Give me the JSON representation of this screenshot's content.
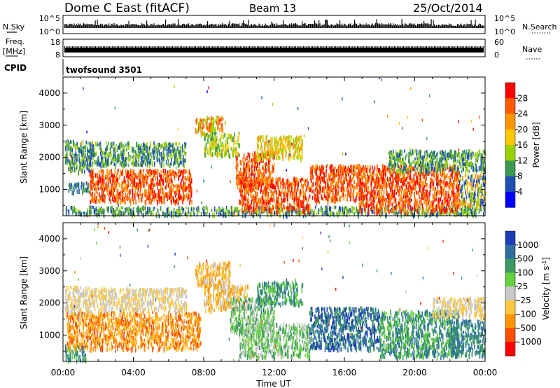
{
  "header": {
    "station": "Dome C East (fitACF)",
    "beam": "Beam 13",
    "date": "25/Oct/2014"
  },
  "strip_panels": {
    "nsky_label": "N.Sky",
    "nsky_tick_top": "10^5",
    "nsky_tick_bottom": "10^0",
    "nsearch_label": "N.Search",
    "nsearch_tick_top": "10^5",
    "nsearch_tick_bottom": "10^0",
    "freq_label_line1": "Freq.",
    "freq_label_line2": "[MHz]",
    "freq_tick_top": "18",
    "freq_tick_bottom": "8",
    "nave_label": "Nave",
    "nave_tick_top": "60",
    "nave_tick_bottom": "0",
    "cpid_label": "CPID",
    "cpid_value": "twofsound 3501"
  },
  "chart_data": [
    {
      "type": "heatmap",
      "name": "power",
      "ylabel": "Slant Range [km]",
      "xlabel": "",
      "x_ticks": [
        "00:00",
        "04:00",
        "08:00",
        "12:00",
        "16:00",
        "20:00",
        "00:00"
      ],
      "x_range_hours": [
        0,
        24
      ],
      "y_ticks": [
        1000,
        2000,
        3000,
        4000
      ],
      "y_range_km": [
        180,
        4500
      ],
      "colorbar": {
        "label": "Power [dB]",
        "ticks": [
          "28",
          "24",
          "20",
          "16",
          "12",
          "8",
          "4"
        ],
        "colors": [
          "#ff0000",
          "#ff5a00",
          "#ff9600",
          "#ffc800",
          "#9ad200",
          "#3c9a50",
          "#1e50b4",
          "#0000ff"
        ]
      },
      "echo_regions": [
        {
          "t0": 0.1,
          "t1": 24,
          "r0": 250,
          "r1": 500,
          "color_idx": [
            5,
            4,
            6
          ]
        },
        {
          "t0": 0.1,
          "t1": 1.6,
          "r0": 1600,
          "r1": 2550,
          "color_idx": [
            6,
            5,
            4
          ]
        },
        {
          "t0": 1.5,
          "t1": 7.0,
          "r0": 1800,
          "r1": 2500,
          "color_idx": [
            6,
            5,
            4
          ]
        },
        {
          "t0": 0.3,
          "t1": 1.5,
          "r0": 950,
          "r1": 1250,
          "color_idx": [
            6,
            5
          ]
        },
        {
          "t0": 1.5,
          "t1": 7.3,
          "r0": 650,
          "r1": 1650,
          "color_idx": [
            1,
            0,
            2
          ]
        },
        {
          "t0": 7.5,
          "t1": 9.2,
          "r0": 2800,
          "r1": 3300,
          "color_idx": [
            1,
            2,
            4
          ]
        },
        {
          "t0": 8.0,
          "t1": 10.0,
          "r0": 2100,
          "r1": 2800,
          "color_idx": [
            4,
            3,
            5
          ]
        },
        {
          "t0": 9.8,
          "t1": 12.0,
          "r0": 1100,
          "r1": 2200,
          "color_idx": [
            0,
            1,
            2
          ]
        },
        {
          "t0": 11.0,
          "t1": 13.6,
          "r0": 2000,
          "r1": 2700,
          "color_idx": [
            2,
            3,
            4
          ]
        },
        {
          "t0": 10.0,
          "t1": 14.0,
          "r0": 350,
          "r1": 1400,
          "color_idx": [
            0,
            1,
            2
          ]
        },
        {
          "t0": 14.0,
          "t1": 17.0,
          "r0": 700,
          "r1": 1800,
          "color_idx": [
            1,
            0,
            2
          ]
        },
        {
          "t0": 16.8,
          "t1": 22.5,
          "r0": 350,
          "r1": 1800,
          "color_idx": [
            0,
            1,
            2
          ]
        },
        {
          "t0": 18.5,
          "t1": 24.0,
          "r0": 1600,
          "r1": 2250,
          "color_idx": [
            5,
            4,
            6
          ]
        },
        {
          "t0": 22.5,
          "t1": 24.0,
          "r0": 500,
          "r1": 1500,
          "color_idx": [
            2,
            4,
            6
          ]
        }
      ]
    },
    {
      "type": "heatmap",
      "name": "velocity",
      "ylabel": "Slant Range [km]",
      "xlabel": "Time UT",
      "x_ticks": [
        "00:00",
        "04:00",
        "08:00",
        "12:00",
        "16:00",
        "20:00",
        "00:00"
      ],
      "x_range_hours": [
        0,
        24
      ],
      "y_ticks": [
        1000,
        2000,
        3000,
        4000
      ],
      "y_range_km": [
        180,
        4500
      ],
      "colorbar": {
        "label": "Velocity [m s^-1]",
        "ticks": [
          "1000",
          "500",
          "100",
          "25",
          "-25",
          "-100",
          "-500",
          "-1000"
        ],
        "colors": [
          "#1e3cb4",
          "#2e6ea0",
          "#3c9a64",
          "#64d23c",
          "#c8c8c8",
          "#ffc83c",
          "#ff9600",
          "#ff5000",
          "#ff0000"
        ]
      },
      "echo_regions": [
        {
          "t0": 0.1,
          "t1": 1.3,
          "r0": 250,
          "r1": 750,
          "color_idx": [
            2,
            3,
            1
          ]
        },
        {
          "t0": 0.1,
          "t1": 1.6,
          "r0": 1600,
          "r1": 2550,
          "color_idx": [
            4,
            5
          ]
        },
        {
          "t0": 1.5,
          "t1": 7.0,
          "r0": 1800,
          "r1": 2500,
          "color_idx": [
            4,
            5
          ]
        },
        {
          "t0": 0.2,
          "t1": 7.8,
          "r0": 600,
          "r1": 1750,
          "color_idx": [
            6,
            5,
            7
          ]
        },
        {
          "t0": 7.5,
          "t1": 9.5,
          "r0": 2600,
          "r1": 3300,
          "color_idx": [
            5,
            6,
            4
          ]
        },
        {
          "t0": 8.0,
          "t1": 10.5,
          "r0": 1800,
          "r1": 2600,
          "color_idx": [
            4,
            5,
            6
          ]
        },
        {
          "t0": 9.5,
          "t1": 12.0,
          "r0": 1100,
          "r1": 2200,
          "color_idx": [
            2,
            3,
            4
          ]
        },
        {
          "t0": 11.0,
          "t1": 13.6,
          "r0": 2000,
          "r1": 2700,
          "color_idx": [
            2,
            1,
            3
          ]
        },
        {
          "t0": 10.0,
          "t1": 14.0,
          "r0": 350,
          "r1": 1400,
          "color_idx": [
            2,
            3,
            4
          ]
        },
        {
          "t0": 14.0,
          "t1": 18.0,
          "r0": 600,
          "r1": 1900,
          "color_idx": [
            1,
            2,
            0
          ]
        },
        {
          "t0": 18.0,
          "t1": 22.5,
          "r0": 350,
          "r1": 1800,
          "color_idx": [
            1,
            2,
            3
          ]
        },
        {
          "t0": 21.0,
          "t1": 24.0,
          "r0": 1600,
          "r1": 2200,
          "color_idx": [
            4,
            5
          ]
        },
        {
          "t0": 22.0,
          "t1": 24.0,
          "r0": 400,
          "r1": 1500,
          "color_idx": [
            2,
            1
          ]
        }
      ]
    }
  ]
}
